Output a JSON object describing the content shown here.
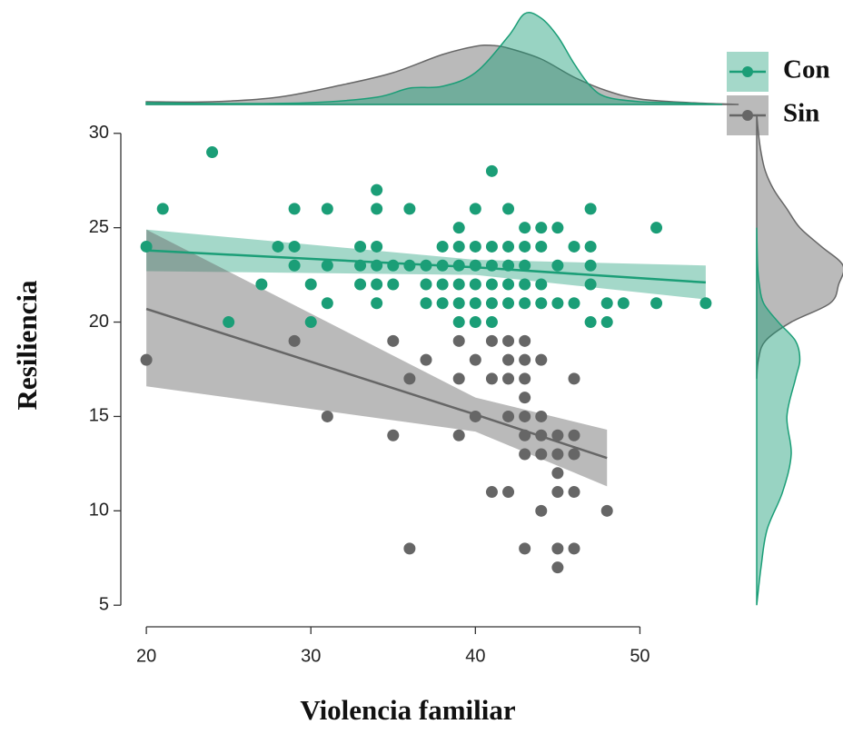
{
  "chart_data": {
    "type": "scatter",
    "xlabel": "Violencia familiar",
    "ylabel": "Resiliencia",
    "xlim": [
      19,
      55
    ],
    "ylim": [
      4,
      31
    ],
    "xticks": [
      20,
      30,
      40,
      50
    ],
    "yticks": [
      5,
      10,
      15,
      20,
      25,
      30
    ],
    "series": [
      {
        "name": "Con",
        "color": "#1b9e77",
        "x": [
          20,
          21,
          24,
          25,
          27,
          28,
          29,
          29,
          29,
          30,
          30,
          31,
          31,
          31,
          33,
          33,
          33,
          34,
          34,
          34,
          34,
          34,
          34,
          35,
          35,
          36,
          36,
          37,
          37,
          37,
          38,
          38,
          38,
          38,
          39,
          39,
          39,
          39,
          39,
          39,
          40,
          40,
          40,
          40,
          40,
          40,
          41,
          41,
          41,
          41,
          41,
          41,
          42,
          42,
          42,
          42,
          42,
          43,
          43,
          43,
          43,
          43,
          44,
          44,
          44,
          44,
          45,
          45,
          45,
          46,
          46,
          47,
          47,
          47,
          47,
          47,
          48,
          48,
          49,
          51,
          51,
          54
        ],
        "values": [
          24,
          26,
          29,
          20,
          22,
          24,
          26,
          24,
          23,
          22,
          20,
          26,
          23,
          21,
          24,
          23,
          22,
          27,
          26,
          24,
          23,
          22,
          21,
          22,
          23,
          26,
          23,
          23,
          22,
          21,
          24,
          23,
          22,
          21,
          25,
          24,
          23,
          22,
          21,
          20,
          26,
          24,
          23,
          22,
          21,
          20,
          28,
          24,
          23,
          22,
          21,
          20,
          26,
          24,
          23,
          22,
          21,
          25,
          24,
          23,
          22,
          21,
          25,
          24,
          22,
          21,
          25,
          23,
          21,
          24,
          21,
          26,
          24,
          23,
          22,
          20,
          21,
          20,
          21,
          25,
          21,
          21
        ],
        "fit": {
          "x": [
            20,
            40,
            54
          ],
          "y": [
            23.8,
            22.9,
            22.1
          ],
          "lower": [
            22.7,
            22.5,
            21.2
          ],
          "upper": [
            24.9,
            23.3,
            23.0
          ]
        },
        "x_density": {
          "x": [
            20,
            25,
            30,
            34,
            36,
            38,
            40,
            42,
            43,
            44,
            45,
            46,
            47,
            48,
            50,
            52,
            55
          ],
          "density": [
            0.02,
            0.01,
            0.02,
            0.08,
            0.18,
            0.2,
            0.35,
            0.75,
            1.0,
            0.95,
            0.75,
            0.45,
            0.2,
            0.08,
            0.03,
            0.02,
            0
          ]
        },
        "y_density": {
          "y": [
            5,
            7,
            9,
            11,
            13,
            15,
            17,
            18,
            19,
            20,
            21,
            22,
            23,
            25
          ],
          "density": [
            0,
            0.05,
            0.12,
            0.3,
            0.4,
            0.35,
            0.45,
            0.5,
            0.45,
            0.25,
            0.08,
            0.03,
            0.01,
            0
          ]
        }
      },
      {
        "name": "Sin",
        "color": "#666666",
        "x": [
          20,
          29,
          31,
          35,
          35,
          36,
          36,
          37,
          39,
          39,
          39,
          40,
          40,
          41,
          41,
          41,
          42,
          42,
          42,
          42,
          42,
          43,
          43,
          43,
          43,
          43,
          43,
          43,
          43,
          44,
          44,
          44,
          44,
          44,
          45,
          45,
          45,
          45,
          45,
          45,
          46,
          46,
          46,
          46,
          46,
          48
        ],
        "values": [
          18,
          19,
          15,
          19,
          14,
          17,
          8,
          18,
          19,
          17,
          14,
          18,
          15,
          19,
          17,
          11,
          19,
          18,
          17,
          15,
          11,
          19,
          18,
          17,
          16,
          15,
          14,
          13,
          8,
          18,
          15,
          14,
          13,
          10,
          14,
          13,
          12,
          11,
          8,
          7,
          17,
          14,
          13,
          11,
          8,
          10
        ],
        "fit": {
          "x": [
            20,
            40,
            48
          ],
          "y": [
            20.7,
            15.1,
            12.8
          ],
          "lower": [
            16.6,
            14.2,
            11.3
          ],
          "upper": [
            24.9,
            16.0,
            14.3
          ]
        },
        "x_density": {
          "x": [
            20,
            24,
            28,
            32,
            35,
            38,
            40,
            41,
            42,
            44,
            46,
            48,
            50,
            53,
            56
          ],
          "density": [
            0.03,
            0.03,
            0.08,
            0.22,
            0.35,
            0.55,
            0.64,
            0.65,
            0.62,
            0.5,
            0.3,
            0.15,
            0.06,
            0.02,
            0
          ]
        },
        "y_density": {
          "y": [
            17,
            18,
            19,
            20,
            21,
            22,
            23,
            24,
            25,
            26,
            27,
            28,
            29,
            30,
            31
          ],
          "density": [
            0,
            0.02,
            0.1,
            0.4,
            0.85,
            0.95,
            1.0,
            0.75,
            0.5,
            0.35,
            0.2,
            0.1,
            0.05,
            0.02,
            0
          ]
        }
      }
    ]
  }
}
